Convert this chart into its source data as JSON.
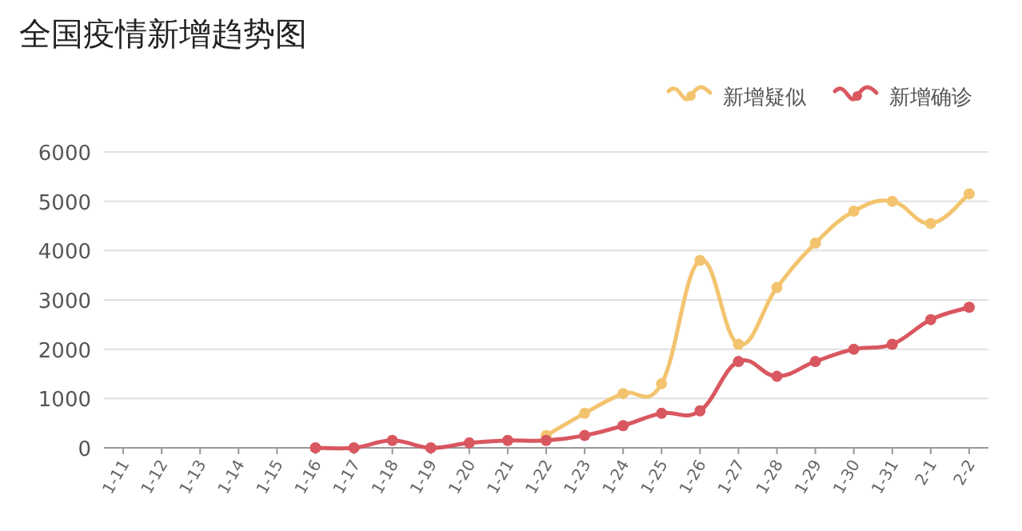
{
  "chart_data": {
    "type": "line",
    "title": "全国疫情新增趋势图",
    "categories": [
      "1-11",
      "1-12",
      "1-13",
      "1-14",
      "1-15",
      "1-16",
      "1-17",
      "1-18",
      "1-19",
      "1-20",
      "1-21",
      "1-22",
      "1-23",
      "1-24",
      "1-25",
      "1-26",
      "1-27",
      "1-28",
      "1-29",
      "1-30",
      "1-31",
      "2-1",
      "2-2"
    ],
    "series": [
      {
        "name": "新增疑似",
        "color": "#f3c46f",
        "values": [
          null,
          null,
          null,
          null,
          null,
          null,
          null,
          null,
          null,
          null,
          null,
          250,
          700,
          1100,
          1300,
          3800,
          2100,
          3250,
          4150,
          4800,
          5000,
          4550,
          5150
        ]
      },
      {
        "name": "新增确诊",
        "color": "#d9575f",
        "values": [
          null,
          null,
          null,
          null,
          null,
          0,
          0,
          150,
          0,
          100,
          150,
          150,
          250,
          450,
          700,
          750,
          1750,
          1450,
          1750,
          2000,
          2100,
          2600,
          2850
        ]
      }
    ],
    "ylim": [
      0,
      6000
    ],
    "yticks": [
      0,
      1000,
      2000,
      3000,
      4000,
      5000,
      6000
    ],
    "grid": "y",
    "legend": "top right",
    "marker": "circle",
    "line_style": "solid"
  }
}
